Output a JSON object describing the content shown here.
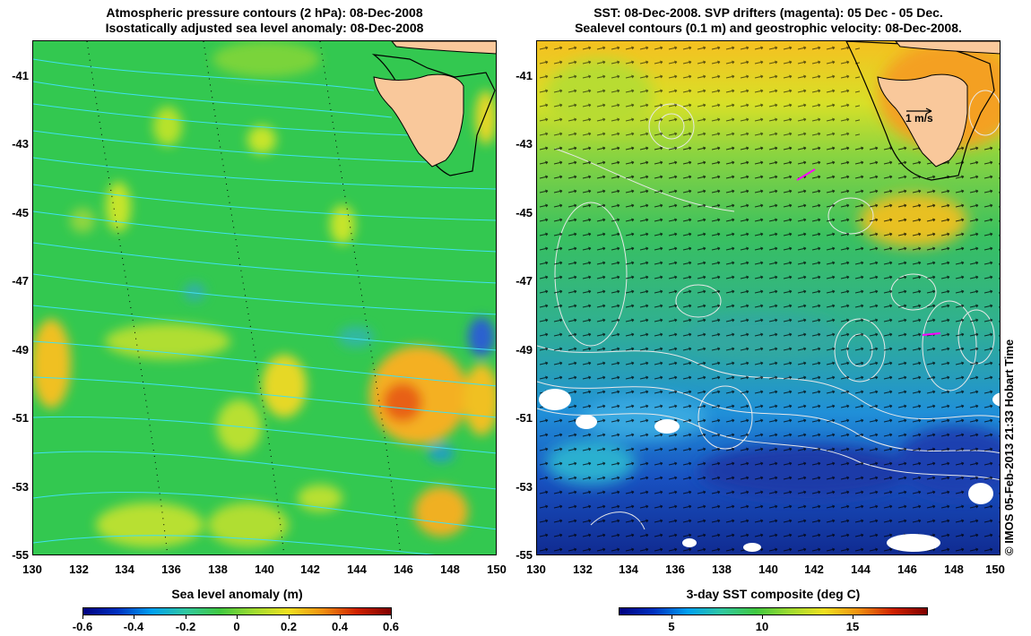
{
  "left_panel": {
    "title_line1": "Atmospheric pressure contours (2 hPa): 08-Dec-2008",
    "title_line2": "Isostatically adjusted sea level anomaly: 08-Dec-2008",
    "colorbar_label": "Sea level anomaly (m)",
    "colorbar_ticks": [
      "-0.6",
      "-0.4",
      "-0.2",
      "0",
      "0.2",
      "0.4",
      "0.6"
    ]
  },
  "right_panel": {
    "title_line1": "SST: 08-Dec-2008. SVP drifters (magenta): 05 Dec - 05 Dec.",
    "title_line2": "Sealevel contours (0.1 m) and geostrophic velocity: 08-Dec-2008.",
    "colorbar_label": "3-day SST composite (deg C)",
    "colorbar_ticks": [
      "5",
      "10",
      "15"
    ],
    "velocity_scale_label": "1 m/s"
  },
  "axes": {
    "y_ticks": [
      "-41",
      "-43",
      "-45",
      "-47",
      "-49",
      "-51",
      "-53",
      "-55"
    ],
    "x_ticks": [
      "130",
      "132",
      "134",
      "136",
      "138",
      "140",
      "142",
      "144",
      "146",
      "148",
      "150"
    ]
  },
  "credit": "© IMOS 05-Feb-2013 21:33 Hobart Time",
  "colors": {
    "land": "#f9c89b",
    "ssh_background": "#33c850",
    "drifter": "#ff00ff",
    "pressure_contour": "#40e0f0"
  }
}
